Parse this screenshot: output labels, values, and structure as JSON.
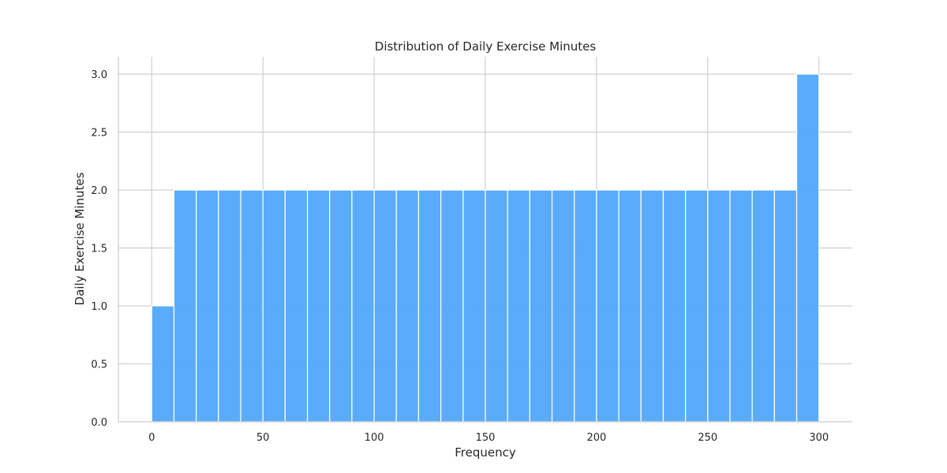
{
  "chart_data": {
    "type": "bar",
    "title": "Distribution of Daily Exercise Minutes",
    "xlabel": "Frequency",
    "ylabel": "Daily Exercise Minutes",
    "xlim": [
      -15,
      315
    ],
    "ylim": [
      0,
      3.15
    ],
    "xticks": [
      0,
      50,
      100,
      150,
      200,
      250,
      300
    ],
    "yticks": [
      0.0,
      0.5,
      1.0,
      1.5,
      2.0,
      2.5,
      3.0
    ],
    "ytick_labels": [
      "0.0",
      "0.5",
      "1.0",
      "1.5",
      "2.0",
      "2.5",
      "3.0"
    ],
    "bin_edges": [
      0,
      10,
      20,
      30,
      40,
      50,
      60,
      70,
      80,
      90,
      100,
      110,
      120,
      130,
      140,
      150,
      160,
      170,
      180,
      190,
      200,
      210,
      220,
      230,
      240,
      250,
      260,
      270,
      280,
      290,
      300
    ],
    "values": [
      1,
      2,
      2,
      2,
      2,
      2,
      2,
      2,
      2,
      2,
      2,
      2,
      2,
      2,
      2,
      2,
      2,
      2,
      2,
      2,
      2,
      2,
      2,
      2,
      2,
      2,
      2,
      2,
      2,
      3
    ],
    "bar_color": "#4da6fb",
    "grid": true,
    "legend": "none"
  }
}
